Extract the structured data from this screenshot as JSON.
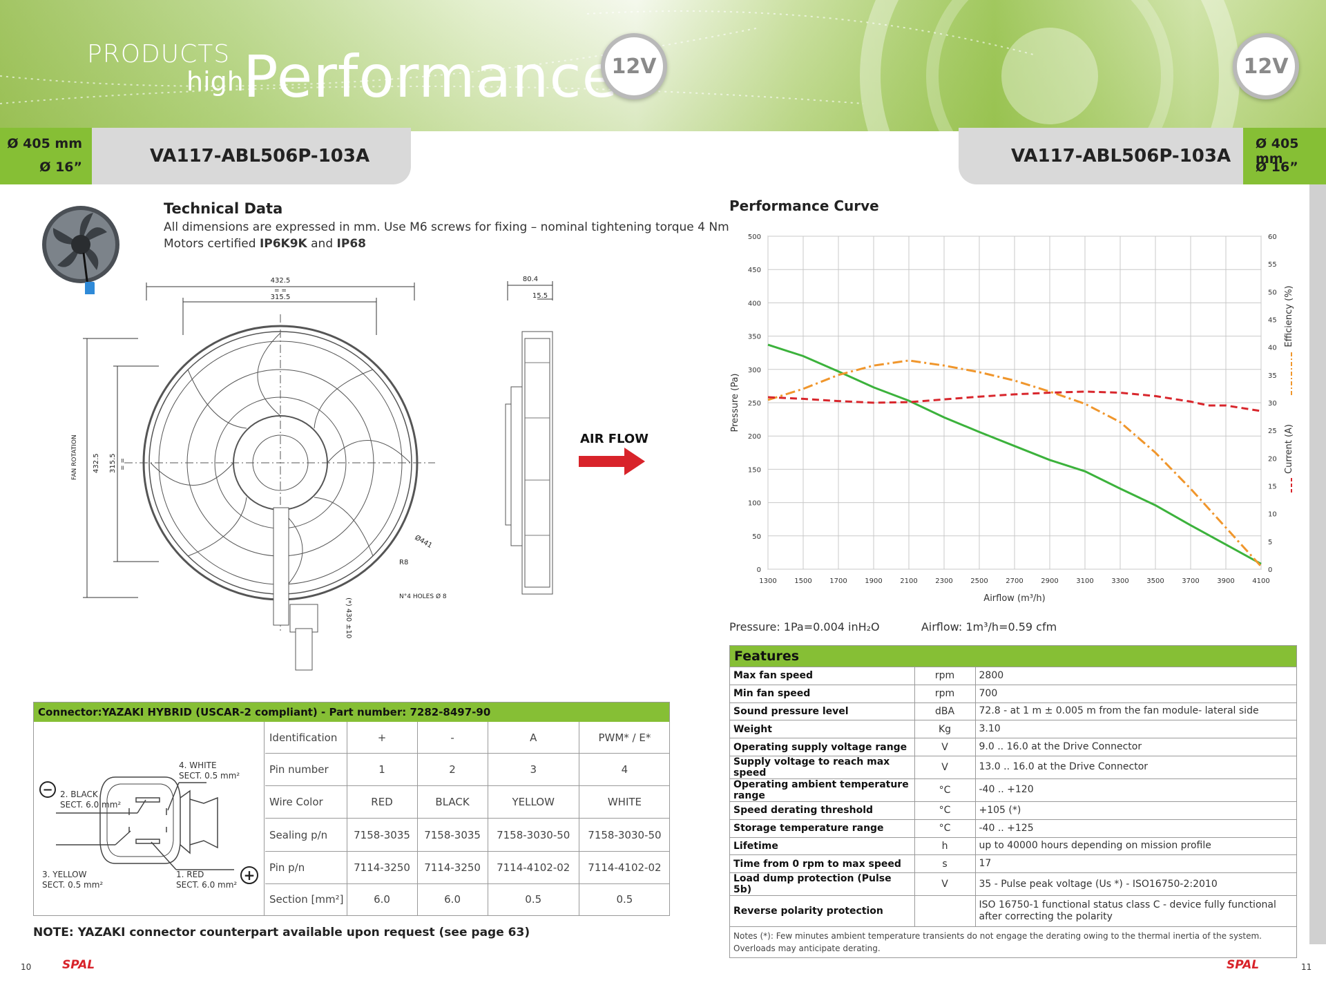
{
  "header": {
    "products": "PRODUCTS",
    "high": "high",
    "performance": "Performance",
    "voltage": "12V"
  },
  "model": {
    "diameter_mm": "Ø 405 mm",
    "diameter_in": "Ø 16”",
    "code": "VA117-ABL506P-103A"
  },
  "technical": {
    "title": "Technical Data",
    "line1": "All dimensions are expressed in mm. Use M6 screws for fixing – nominal tightening torque 4 Nm",
    "line2_prefix": "Motors certified ",
    "cert1": "IP6K9K",
    "line2_and": " and ",
    "cert2": "IP68"
  },
  "drawing": {
    "dim_outer": "432.5",
    "dim_inner": "315.5",
    "dim_eq": "= =",
    "dim_depth": "80.4",
    "dim_depth2": "15.5",
    "dia_label": "Ø441",
    "radius": "R8",
    "holes": "N°4 HOLES Ø 8",
    "cable": "(*) 430 ±10",
    "fan_rotation": "FAN ROTATION",
    "airflow": "AIR FLOW"
  },
  "connector": {
    "title": "Connector:YAZAKI HYBRID (USCAR-2 compliant) - Part number: 7282-8497-90",
    "wires": {
      "black": [
        "2. BLACK",
        "SECT. 6.0 mm²"
      ],
      "white": [
        "4. WHITE",
        "SECT. 0.5 mm²"
      ],
      "yellow": [
        "3. YELLOW",
        "SECT. 0.5 mm²"
      ],
      "red": [
        "1. RED",
        "SECT. 6.0 mm²"
      ],
      "minus": "−",
      "plus": "+"
    },
    "rows": [
      {
        "label": "Identification",
        "values": [
          "+",
          "-",
          "A",
          "PWM* / E*"
        ]
      },
      {
        "label": "Pin number",
        "values": [
          "1",
          "2",
          "3",
          "4"
        ]
      },
      {
        "label": "Wire Color",
        "values": [
          "RED",
          "BLACK",
          "YELLOW",
          "WHITE"
        ]
      },
      {
        "label": "Sealing p/n",
        "values": [
          "7158-3035",
          "7158-3035",
          "7158-3030-50",
          "7158-3030-50"
        ]
      },
      {
        "label": "Pin p/n",
        "values": [
          "7114-3250",
          "7114-3250",
          "7114-4102-02",
          "7114-4102-02"
        ]
      },
      {
        "label": "Section [mm²]",
        "values": [
          "6.0",
          "6.0",
          "0.5",
          "0.5"
        ]
      }
    ],
    "note": "NOTE: YAZAKI connector counterpart available upon request (see page 63)"
  },
  "footer": {
    "page_left": "10",
    "page_right": "11",
    "brand": "SPAL"
  },
  "performance": {
    "title": "Performance Curve",
    "conv_pressure": "Pressure: 1Pa=0.004 inH₂O",
    "conv_airflow": "Airflow: 1m³/h=0.59 cfm"
  },
  "chart_data": {
    "type": "line",
    "xlabel": "Airflow (m³/h)",
    "ylabel": "Pressure (Pa)",
    "y2label_efficiency": "Efficiency (%)",
    "y2label_current": "Current (A)",
    "xlim": [
      1300,
      4100
    ],
    "ylim": [
      0,
      500
    ],
    "y2lim": [
      0,
      60
    ],
    "x_ticks": [
      1300,
      1500,
      1700,
      1900,
      2100,
      2300,
      2500,
      2700,
      2900,
      3100,
      3300,
      3500,
      3700,
      3900,
      4100
    ],
    "y_ticks": [
      0,
      50,
      100,
      150,
      200,
      250,
      300,
      350,
      400,
      450,
      500
    ],
    "y2_ticks": [
      0,
      5,
      10,
      15,
      20,
      25,
      30,
      35,
      40,
      45,
      50,
      55,
      60
    ],
    "grid": true,
    "series": [
      {
        "key": "pressure",
        "axis": "left",
        "color": "#3cb23c",
        "x": [
          1300,
          1500,
          1700,
          1900,
          2100,
          2300,
          2500,
          2700,
          2900,
          3100,
          3300,
          3500,
          3700,
          3900,
          4100
        ],
        "y": [
          337,
          320,
          297,
          273,
          253,
          228,
          206,
          185,
          164,
          147,
          121,
          96,
          66,
          37,
          8
        ]
      },
      {
        "key": "efficiency",
        "axis": "right",
        "color": "#f0962c",
        "x": [
          1300,
          1500,
          1700,
          1900,
          2100,
          2300,
          2500,
          2700,
          2900,
          3100,
          3300,
          3500,
          3700,
          3900,
          4100
        ],
        "y": [
          30.5,
          32.5,
          35.0,
          36.7,
          37.6,
          36.7,
          35.5,
          34.0,
          32.0,
          29.8,
          26.5,
          21.0,
          14.5,
          7.5,
          0.5
        ]
      },
      {
        "key": "current",
        "axis": "right",
        "color": "#d8262c",
        "x": [
          1300,
          1500,
          1700,
          1900,
          2100,
          2300,
          2500,
          2700,
          2900,
          3100,
          3300,
          3500,
          3700,
          3800,
          3900,
          4100
        ],
        "y": [
          31.0,
          30.7,
          30.3,
          30.0,
          30.1,
          30.6,
          31.1,
          31.5,
          31.8,
          32.0,
          31.8,
          31.2,
          30.2,
          29.5,
          29.5,
          28.5
        ]
      }
    ]
  },
  "features": {
    "title": "Features",
    "rows": [
      {
        "name": "Max fan speed",
        "unit": "rpm",
        "value": "2800"
      },
      {
        "name": "Min fan speed",
        "unit": "rpm",
        "value": "700"
      },
      {
        "name": "Sound pressure level",
        "unit": "dBA",
        "value": "72.8 - at 1 m ± 0.005 m from the fan module- lateral side"
      },
      {
        "name": "Weight",
        "unit": "Kg",
        "value": "3.10"
      },
      {
        "name": "Operating supply voltage range",
        "unit": "V",
        "value": "9.0 .. 16.0 at the Drive Connector"
      },
      {
        "name": "Supply voltage to reach max speed",
        "unit": "V",
        "value": "13.0 .. 16.0 at the Drive Connector"
      },
      {
        "name": "Operating ambient temperature range",
        "unit": "°C",
        "value": "-40 .. +120"
      },
      {
        "name": "Speed derating threshold",
        "unit": "°C",
        "value": "+105 (*)"
      },
      {
        "name": "Storage temperature range",
        "unit": "°C",
        "value": "-40 .. +125"
      },
      {
        "name": "Lifetime",
        "unit": "h",
        "value": "up to 40000 hours depending on mission profile"
      },
      {
        "name": "Time from 0 rpm to max speed",
        "unit": "s",
        "value": "17"
      },
      {
        "name": "Load dump protection (Pulse 5b)",
        "unit": "V",
        "value": "35 - Pulse peak voltage (Us *) - ISO16750-2:2010"
      },
      {
        "name": "Reverse polarity protection",
        "unit": "",
        "value": "ISO 16750-1 functional status class C - device fully functional after correcting the polarity"
      }
    ],
    "notes": "Notes (*): Few minutes ambient temperature transients do not engage the derating owing to the thermal inertia of the system. Overloads may anticipate derating."
  }
}
